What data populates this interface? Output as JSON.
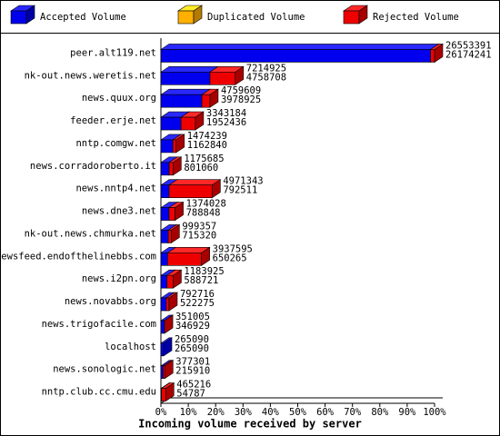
{
  "chart_data": {
    "type": "hbar-3d-stacked",
    "title": "Incoming volume received by server",
    "categories": [
      "peer.alt119.net",
      "nk-out.news.weretis.net",
      "news.quux.org",
      "feeder.erje.net",
      "nntp.comgw.net",
      "news.corradoroberto.it",
      "news.nntp4.net",
      "news.dne3.net",
      "nk-out.news.chmurka.net",
      "newsfeed.endofthelinebbs.com",
      "news.i2pn.org",
      "news.novabbs.org",
      "news.trigofacile.com",
      "localhost",
      "news.sonologic.net",
      "nntp.club.cc.cmu.edu"
    ],
    "series": [
      {
        "name": "Accepted Volume",
        "color": "#0000ee",
        "values": [
          26174241,
          4758708,
          3978925,
          1952436,
          1162840,
          801060,
          792511,
          788848,
          715320,
          650265,
          588721,
          522275,
          346929,
          265090,
          215910,
          54787
        ]
      },
      {
        "name": "Duplicated Volume",
        "color": "#ffb000",
        "values": [
          0,
          0,
          0,
          0,
          0,
          0,
          0,
          0,
          0,
          0,
          0,
          0,
          0,
          0,
          0,
          0
        ]
      },
      {
        "name": "Rejected Volume",
        "color": "#ee0000",
        "values": [
          379150,
          2456217,
          780684,
          1390748,
          311399,
          374625,
          4178832,
          585180,
          284037,
          3287330,
          595204,
          270441,
          4076,
          0,
          161391,
          410429
        ]
      }
    ],
    "totals": [
      26553391,
      7214925,
      4759609,
      3343184,
      1474239,
      1175685,
      4971343,
      1374028,
      999357,
      3937595,
      1183925,
      792716,
      351005,
      265090,
      377301,
      465216
    ],
    "xlim": [
      0,
      26553391
    ],
    "xticks": [
      {
        "value": 0,
        "label": "0%"
      },
      {
        "value": 2655339.1,
        "label": "10%"
      },
      {
        "value": 5310678.2,
        "label": "20%"
      },
      {
        "value": 7966017.3,
        "label": "30%"
      },
      {
        "value": 10621356.4,
        "label": "40%"
      },
      {
        "value": 13276695.5,
        "label": "50%"
      },
      {
        "value": 15932034.6,
        "label": "60%"
      },
      {
        "value": 18587373.7,
        "label": "70%"
      },
      {
        "value": 21242712.8,
        "label": "80%"
      },
      {
        "value": 23898051.9,
        "label": "90%"
      },
      {
        "value": 26553391,
        "label": "100%"
      }
    ]
  }
}
